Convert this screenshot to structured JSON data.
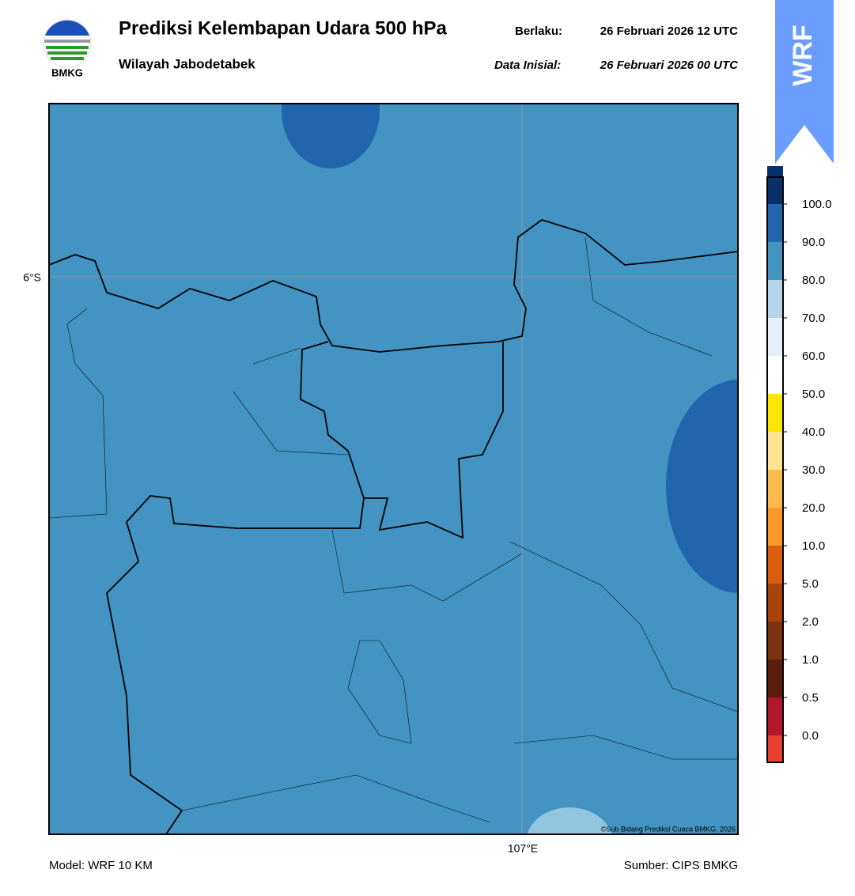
{
  "header": {
    "logo_text": "BMKG",
    "title": "Prediksi Kelembapan Udara 500 hPa",
    "subtitle": "Wilayah Jabodetabek",
    "valid_label": "Berlaku:",
    "valid_time": "26 Februari 2026 12 UTC",
    "init_label": "Data Inisial:",
    "init_time": "26 Februari 2026 00 UTC",
    "badge": "WRF"
  },
  "map": {
    "lat_label": "6°S",
    "lon_label": "107°E",
    "copyright": "©Sub Bidang Prediksi Cuaca BMKG, 2026"
  },
  "colorbar": {
    "colors": [
      "#e8412f",
      "#b2182b",
      "#5a1e0a",
      "#7f3210",
      "#a8450c",
      "#d95f0e",
      "#fe9929",
      "#fdbb4f",
      "#fee391",
      "#ffe600",
      "#ffffff",
      "#e6eff7",
      "#b5d4e9",
      "#4393c3",
      "#2166ac",
      "#08306b",
      "#2a0a4a"
    ],
    "labels": [
      "0.0",
      "0.5",
      "1.0",
      "2.0",
      "5.0",
      "10.0",
      "20.0",
      "30.0",
      "40.0",
      "50.0",
      "60.0",
      "70.0",
      "80.0",
      "90.0",
      "100.0"
    ]
  },
  "footer": {
    "model": "Model: WRF 10 KM",
    "source": "Sumber: CIPS BMKG"
  }
}
